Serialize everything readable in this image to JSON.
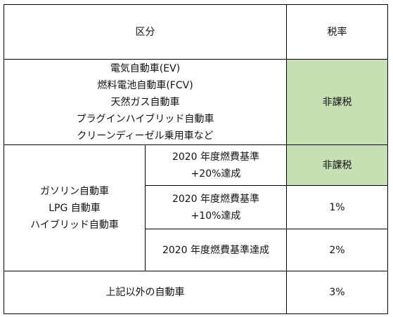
{
  "header": {
    "category": "区分",
    "rate": "税率"
  },
  "rows": {
    "eco": {
      "vehicles": [
        "電気自動車(EV)",
        "燃料電池自動車(FCV)",
        "天然ガス自動車",
        "プラグインハイブリッド自動車",
        "クリーンディーゼル乗用車など"
      ],
      "rate": "非課税"
    },
    "gasoline": {
      "vehicles": [
        "ガソリン自動車",
        "LPG 自動車",
        "ハイブリッド自動車"
      ],
      "tiers": [
        {
          "criteria": [
            "2020 年度燃費基準",
            "+20%達成"
          ],
          "rate": "非課税"
        },
        {
          "criteria": [
            "2020 年度燃費基準",
            "+10%達成"
          ],
          "rate": "1%"
        },
        {
          "criteria": [
            "2020 年度燃費基準達成"
          ],
          "rate": "2%"
        }
      ]
    },
    "other": {
      "label": "上記以外の自動車",
      "rate": "3%"
    }
  },
  "colors": {
    "highlight": "#c6e0b4",
    "border": "#000000"
  }
}
